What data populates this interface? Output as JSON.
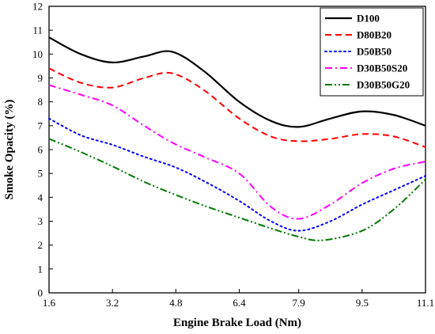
{
  "chart_data": {
    "type": "line",
    "xlabel": "Engine Brake Load (Nm)",
    "ylabel": "Smoke Opacity (%)",
    "xlim": [
      1.6,
      11.1
    ],
    "ylim": [
      0,
      12
    ],
    "x_ticks": [
      "1.6",
      "3.2",
      "4.8",
      "6.4",
      "7.9",
      "9.5",
      "11.1"
    ],
    "y_ticks": [
      "0",
      "1",
      "2",
      "3",
      "4",
      "5",
      "6",
      "7",
      "8",
      "9",
      "10",
      "11",
      "12"
    ],
    "grid": false,
    "legend_position": "top-right",
    "series": [
      {
        "name": "D100",
        "color": "#000000",
        "dash": "solid",
        "x": [
          1.6,
          2.4,
          3.2,
          4.0,
          4.7,
          5.5,
          6.4,
          7.2,
          7.9,
          8.7,
          9.5,
          10.3,
          11.1
        ],
        "y": [
          10.7,
          10.0,
          9.65,
          9.9,
          10.1,
          9.3,
          8.0,
          7.2,
          6.95,
          7.3,
          7.6,
          7.45,
          7.0
        ]
      },
      {
        "name": "D80B20",
        "color": "#ff0000",
        "dash": "dashed",
        "x": [
          1.6,
          2.4,
          3.2,
          4.0,
          4.7,
          5.5,
          6.4,
          7.2,
          7.9,
          8.7,
          9.5,
          10.3,
          11.1
        ],
        "y": [
          9.4,
          8.8,
          8.6,
          9.0,
          9.2,
          8.5,
          7.3,
          6.55,
          6.35,
          6.45,
          6.65,
          6.55,
          6.1
        ]
      },
      {
        "name": "D50B50",
        "color": "#0000ff",
        "dash": "dotted",
        "x": [
          1.6,
          2.4,
          3.2,
          4.0,
          4.8,
          5.6,
          6.4,
          7.2,
          7.9,
          8.7,
          9.5,
          10.3,
          11.1
        ],
        "y": [
          7.3,
          6.6,
          6.2,
          5.7,
          5.25,
          4.6,
          3.85,
          3.0,
          2.6,
          3.0,
          3.7,
          4.3,
          4.9
        ]
      },
      {
        "name": "D30B50S20",
        "color": "#ff00ff",
        "dash": "dashdot",
        "x": [
          1.6,
          2.4,
          3.2,
          4.0,
          4.7,
          5.5,
          6.4,
          7.2,
          7.9,
          8.7,
          9.5,
          10.3,
          11.1
        ],
        "y": [
          8.7,
          8.3,
          7.85,
          7.0,
          6.3,
          5.7,
          5.0,
          3.6,
          3.1,
          3.7,
          4.6,
          5.2,
          5.5
        ]
      },
      {
        "name": "D30B50G20",
        "color": "#007700",
        "dash": "dashdotdot",
        "x": [
          1.6,
          2.4,
          3.2,
          4.0,
          4.8,
          5.6,
          6.4,
          7.2,
          7.9,
          8.5,
          9.5,
          10.3,
          11.1
        ],
        "y": [
          6.45,
          5.9,
          5.3,
          4.65,
          4.1,
          3.6,
          3.15,
          2.7,
          2.35,
          2.2,
          2.6,
          3.5,
          4.75
        ]
      }
    ]
  }
}
